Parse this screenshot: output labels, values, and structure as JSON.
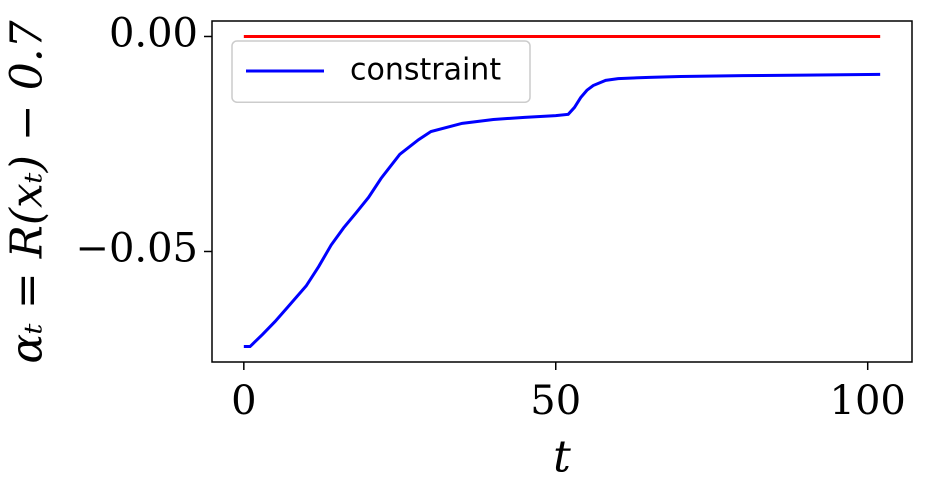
{
  "chart_data": {
    "type": "line",
    "x_label": "t",
    "y_label": "αₜ = R(xₜ) − 0.7",
    "x": [
      0,
      1,
      3,
      5,
      7,
      10,
      12,
      14,
      16,
      18,
      20,
      22,
      25,
      28,
      30,
      35,
      40,
      45,
      50,
      52,
      53,
      54,
      55,
      56,
      58,
      60,
      65,
      70,
      80,
      90,
      102
    ],
    "series": [
      {
        "color": "#ff0000",
        "values": [
          0,
          0,
          0,
          0,
          0,
          0,
          0,
          0,
          0,
          0,
          0,
          0,
          0,
          0,
          0,
          0,
          0,
          0,
          0,
          0,
          0,
          0,
          0,
          0,
          0,
          0,
          0,
          0,
          0,
          0,
          0
        ]
      },
      {
        "name": "constraint",
        "color": "#0000ff",
        "values": [
          -0.0721,
          -0.0721,
          -0.0693,
          -0.0663,
          -0.063,
          -0.058,
          -0.0535,
          -0.0485,
          -0.0445,
          -0.041,
          -0.0374,
          -0.033,
          -0.0274,
          -0.024,
          -0.0221,
          -0.0202,
          -0.0193,
          -0.0188,
          -0.0184,
          -0.0181,
          -0.0165,
          -0.0142,
          -0.0125,
          -0.0114,
          -0.0102,
          -0.0098,
          -0.0095,
          -0.0093,
          -0.0091,
          -0.009,
          -0.0088
        ]
      }
    ],
    "xlim": [
      -5.1,
      107.1
    ],
    "ylim": [
      -0.0757,
      0.0036
    ],
    "xticks": [
      0,
      50,
      100
    ],
    "yticks": [
      {
        "value": -0.05,
        "label": "−0.05"
      },
      {
        "value": 0,
        "label": "0.00"
      }
    ],
    "legend": "upper left"
  }
}
